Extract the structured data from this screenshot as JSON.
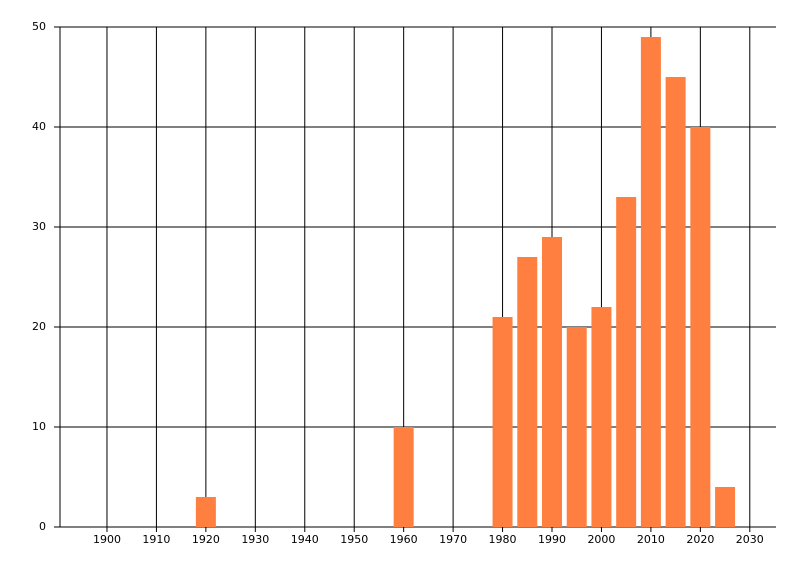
{
  "chart_data": {
    "type": "bar",
    "x": [
      1920,
      1960,
      1980,
      1985,
      1990,
      1995,
      2000,
      2005,
      2010,
      2015,
      2020,
      2025
    ],
    "values": [
      3,
      10,
      21,
      27,
      29,
      20,
      22,
      33,
      49,
      45,
      40,
      4
    ],
    "color": "#ff7f40",
    "xlim": [
      1890.5,
      2035.3
    ],
    "xticks": [
      1900,
      1910,
      1920,
      1930,
      1940,
      1950,
      1960,
      1970,
      1980,
      1990,
      2000,
      2010,
      2020,
      2030
    ],
    "ylim": [
      0,
      50
    ],
    "yticks": [
      0,
      10,
      20,
      30,
      40,
      50
    ],
    "grid": true
  }
}
